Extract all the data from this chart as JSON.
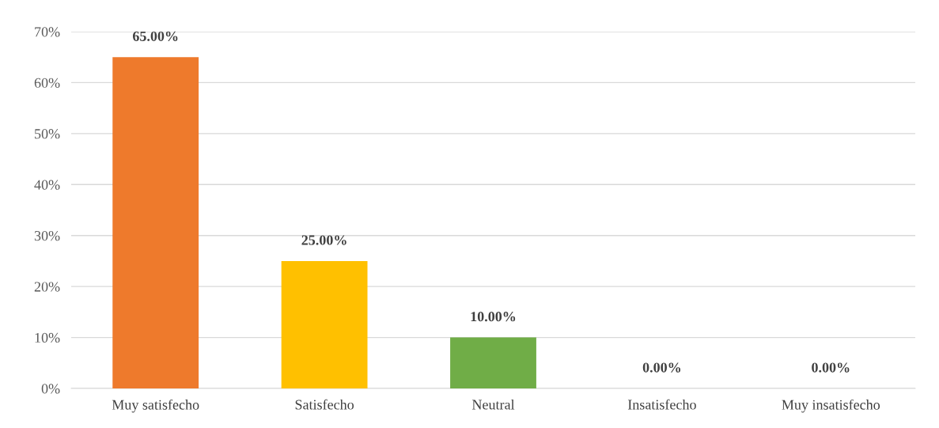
{
  "chart_data": {
    "type": "bar",
    "categories": [
      "Muy satisfecho",
      "Satisfecho",
      "Neutral",
      "Insatisfecho",
      "Muy insatisfecho"
    ],
    "values": [
      65,
      25,
      10,
      0,
      0
    ],
    "colors": [
      "#ee7a2c",
      "#ffc000",
      "#70ad47",
      "#a5a5a5",
      "#4472c4"
    ],
    "value_labels": [
      "65.00%",
      "25.00%",
      "10.00%",
      "0.00%",
      "0.00%"
    ],
    "ylim": [
      0,
      70
    ],
    "yticks": [
      {
        "value": 0,
        "label": "0%"
      },
      {
        "value": 10,
        "label": "10%"
      },
      {
        "value": 20,
        "label": "20%"
      },
      {
        "value": 30,
        "label": "30%"
      },
      {
        "value": 40,
        "label": "40%"
      },
      {
        "value": 50,
        "label": "50%"
      },
      {
        "value": 60,
        "label": "60%"
      },
      {
        "value": 70,
        "label": "70%"
      }
    ],
    "grid": "y",
    "legend": false
  }
}
